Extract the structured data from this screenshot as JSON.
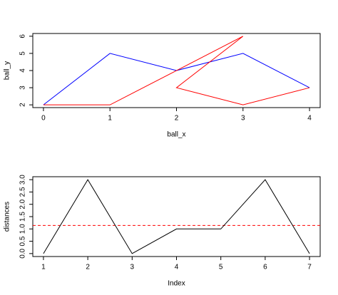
{
  "chart_data": [
    {
      "type": "line",
      "x_label": "ball_x",
      "y_label": "ball_y",
      "xlim": [
        -0.16,
        4.16
      ],
      "ylim": [
        1.84,
        6.16
      ],
      "xticks": [
        0,
        1,
        2,
        3,
        4
      ],
      "yticks": [
        2,
        3,
        4,
        5,
        6
      ],
      "series": [
        {
          "color": "#0000ff",
          "x": [
            0,
            1,
            2,
            3,
            4
          ],
          "values": [
            2,
            5,
            4,
            5,
            3
          ]
        },
        {
          "color": "#ff0000",
          "x": [
            0,
            1,
            3,
            2,
            3,
            4
          ],
          "values": [
            2,
            2,
            6,
            3,
            2,
            3
          ]
        }
      ]
    },
    {
      "type": "line",
      "x_label": "Index",
      "y_label": "distances",
      "xlim": [
        0.76,
        7.24
      ],
      "ylim": [
        -0.12,
        3.12
      ],
      "xticks": [
        1,
        2,
        3,
        4,
        5,
        6,
        7
      ],
      "yticks": [
        {
          "value": 0,
          "label": "0.0"
        },
        {
          "value": 0.5,
          "label": "0.5"
        },
        {
          "value": 1,
          "label": "1.0"
        },
        {
          "value": 1.5,
          "label": "1.5"
        },
        {
          "value": 2,
          "label": "2.0"
        },
        {
          "value": 2.5,
          "label": "2.5"
        },
        {
          "value": 3,
          "label": "3.0"
        }
      ],
      "series": [
        {
          "color": "#000000",
          "x": [
            1,
            2,
            3,
            4,
            5,
            6,
            7
          ],
          "values": [
            0,
            3,
            0,
            1,
            1,
            3,
            0
          ]
        }
      ],
      "hline": {
        "value": 1.142857,
        "color": "#ff0000"
      }
    }
  ]
}
